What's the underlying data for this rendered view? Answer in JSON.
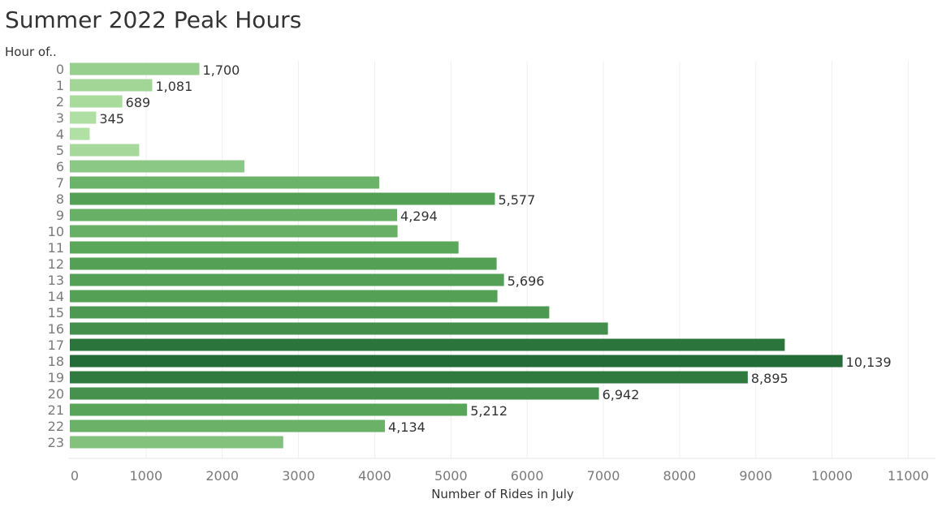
{
  "title": "Summer 2022 Peak Hours",
  "chart_data": {
    "type": "bar",
    "orientation": "horizontal",
    "title": "Summer 2022 Peak Hours",
    "ylabel": "Hour of..",
    "xlabel": "Number of Rides in July",
    "categories": [
      "0",
      "1",
      "2",
      "3",
      "4",
      "5",
      "6",
      "7",
      "8",
      "9",
      "10",
      "11",
      "12",
      "13",
      "14",
      "15",
      "16",
      "17",
      "18",
      "19",
      "20",
      "21",
      "22",
      "23"
    ],
    "values": [
      1700,
      1081,
      689,
      345,
      260,
      910,
      2290,
      4060,
      5577,
      4294,
      4300,
      5100,
      5600,
      5696,
      5610,
      6290,
      7060,
      9380,
      10139,
      8895,
      6942,
      5212,
      4134,
      2800
    ],
    "data_labels": {
      "0": "1,700",
      "1": "1,081",
      "2": "689",
      "3": "345",
      "8": "5,577",
      "9": "4,294",
      "13": "5,696",
      "18": "10,139",
      "19": "8,895",
      "20": "6,942",
      "21": "5,212",
      "22": "4,134"
    },
    "xticks": [
      "0",
      "1000",
      "2000",
      "3000",
      "4000",
      "5000",
      "6000",
      "7000",
      "8000",
      "9000",
      "10000",
      "11000"
    ],
    "xlim": [
      0,
      11000
    ],
    "grid": true,
    "color_scale": {
      "low": "#b6e3a8",
      "mid": "#5aa75a",
      "high": "#236b37"
    }
  }
}
